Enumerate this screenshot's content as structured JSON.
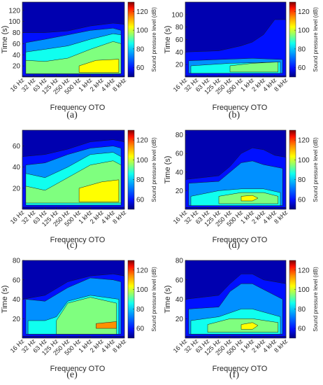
{
  "colors": {
    "background": "#ffffff",
    "axis": "#262626",
    "colormap": [
      "#00007f",
      "#0010ff",
      "#0090ff",
      "#10ffef",
      "#7fff7f",
      "#ffff00",
      "#ff9000",
      "#ff1000",
      "#7f0000"
    ]
  },
  "shared": {
    "xlabel": "Frequency OTO",
    "colorbar_label": "Sound pressure level (dB)",
    "colorbar_ticks": [
      60,
      80,
      100,
      120
    ],
    "colorbar_range": [
      50,
      130
    ],
    "x_tick_labels": [
      "16 Hz",
      "32 Hz",
      "63 Hz",
      "125 Hz",
      "250 Hz",
      "500 Hz",
      "1 kHz",
      "2 kHz",
      "4 kHz",
      "8 kHz"
    ]
  },
  "chart_data": [
    {
      "panel": "(a)",
      "type": "heatmap",
      "ylabel": "Time (s)",
      "xlabel": "Frequency OTO",
      "ylim": [
        0,
        135
      ],
      "y_ticks": [
        20,
        40,
        60,
        80,
        100,
        120
      ],
      "colorbar_ticks": [
        60,
        80,
        100,
        120
      ],
      "regions": [
        {
          "level": 60,
          "outline": [
            [
              0,
              2
            ],
            [
              0,
              80
            ],
            [
              2,
              80
            ],
            [
              4,
              83
            ],
            [
              6,
              92
            ],
            [
              8,
              97
            ],
            [
              9,
              95
            ],
            [
              9,
              2
            ]
          ]
        },
        {
          "level": 75,
          "outline": [
            [
              0.3,
              10
            ],
            [
              0.3,
              62
            ],
            [
              2,
              68
            ],
            [
              4,
              76
            ],
            [
              6,
              84
            ],
            [
              8,
              88
            ],
            [
              8.7,
              84
            ],
            [
              8.7,
              5
            ],
            [
              0.3,
              5
            ]
          ]
        },
        {
          "level": 88,
          "outline": [
            [
              0.3,
              6
            ],
            [
              0.3,
              45
            ],
            [
              2,
              50
            ],
            [
              4,
              56
            ],
            [
              6,
              68
            ],
            [
              8,
              78
            ],
            [
              8.7,
              76
            ],
            [
              8.7,
              6
            ]
          ]
        },
        {
          "level": 98,
          "outline": [
            [
              0.3,
              6
            ],
            [
              0.3,
              30
            ],
            [
              2,
              28
            ],
            [
              4,
              34
            ],
            [
              6,
              50
            ],
            [
              8,
              64
            ],
            [
              8.7,
              60
            ],
            [
              8.7,
              6
            ]
          ]
        },
        {
          "level": 108,
          "outline": [
            [
              5,
              8
            ],
            [
              5,
              20
            ],
            [
              6.5,
              30
            ],
            [
              8.5,
              32
            ],
            [
              8.5,
              8
            ]
          ]
        }
      ]
    },
    {
      "panel": "(b)",
      "type": "heatmap",
      "ylabel": "Time (s)",
      "xlabel": "Frequency OTO",
      "ylim": [
        0,
        120
      ],
      "y_ticks": [
        20,
        40,
        60,
        80,
        100
      ],
      "colorbar_ticks": [
        60,
        80,
        100,
        120
      ],
      "regions": [
        {
          "level": 60,
          "outline": [
            [
              0,
              2
            ],
            [
              0,
              40
            ],
            [
              3,
              42
            ],
            [
              5,
              50
            ],
            [
              6,
              56
            ],
            [
              7,
              68
            ],
            [
              8,
              92
            ],
            [
              9,
              92
            ],
            [
              9,
              2
            ]
          ]
        },
        {
          "level": 75,
          "outline": [
            [
              0.3,
              6
            ],
            [
              0.3,
              26
            ],
            [
              3,
              28
            ],
            [
              6,
              30
            ],
            [
              8.7,
              28
            ],
            [
              8.7,
              6
            ]
          ]
        },
        {
          "level": 88,
          "outline": [
            [
              0.5,
              6
            ],
            [
              0.5,
              18
            ],
            [
              4,
              22
            ],
            [
              8.5,
              24
            ],
            [
              8.5,
              6
            ]
          ]
        },
        {
          "level": 98,
          "outline": [
            [
              4,
              8
            ],
            [
              4,
              18
            ],
            [
              6,
              22
            ],
            [
              8.3,
              24
            ],
            [
              8.3,
              8
            ]
          ]
        }
      ]
    },
    {
      "panel": "(c)",
      "type": "heatmap",
      "ylabel": "",
      "xlabel": "Frequency OTO",
      "ylim": [
        0,
        75
      ],
      "y_ticks": [
        20,
        40,
        60
      ],
      "colorbar_ticks": [
        60,
        80,
        100,
        120
      ],
      "regions": [
        {
          "level": 60,
          "outline": [
            [
              0,
              2
            ],
            [
              0,
              50
            ],
            [
              2,
              52
            ],
            [
              4,
              57
            ],
            [
              6,
              64
            ],
            [
              8,
              66
            ],
            [
              9,
              64
            ],
            [
              9,
              2
            ]
          ]
        },
        {
          "level": 75,
          "outline": [
            [
              0.3,
              4
            ],
            [
              0.3,
              42
            ],
            [
              2,
              44
            ],
            [
              4,
              52
            ],
            [
              6,
              58
            ],
            [
              8,
              60
            ],
            [
              8.7,
              58
            ],
            [
              8.7,
              4
            ]
          ]
        },
        {
          "level": 88,
          "outline": [
            [
              0.3,
              4
            ],
            [
              0.3,
              34
            ],
            [
              2,
              30
            ],
            [
              4,
              40
            ],
            [
              6,
              52
            ],
            [
              8,
              54
            ],
            [
              8.7,
              50
            ],
            [
              8.7,
              4
            ]
          ]
        },
        {
          "level": 98,
          "outline": [
            [
              0.3,
              6
            ],
            [
              0.3,
              22
            ],
            [
              2,
              18
            ],
            [
              4,
              30
            ],
            [
              6,
              42
            ],
            [
              8,
              46
            ],
            [
              8.7,
              42
            ],
            [
              8.7,
              6
            ]
          ]
        },
        {
          "level": 108,
          "outline": [
            [
              5,
              7
            ],
            [
              5,
              20
            ],
            [
              7,
              26
            ],
            [
              8.5,
              28
            ],
            [
              8.5,
              7
            ]
          ]
        }
      ]
    },
    {
      "panel": "(d)",
      "type": "heatmap",
      "ylabel": "Time (s)",
      "xlabel": "Frequency OTO",
      "ylim": [
        0,
        85
      ],
      "y_ticks": [
        20,
        40,
        60,
        80
      ],
      "colorbar_ticks": [
        60,
        80,
        100,
        120
      ],
      "regions": [
        {
          "level": 60,
          "outline": [
            [
              0,
              2
            ],
            [
              0,
              32
            ],
            [
              3,
              36
            ],
            [
              4,
              46
            ],
            [
              5,
              60
            ],
            [
              6,
              66
            ],
            [
              7,
              64
            ],
            [
              8,
              58
            ],
            [
              9,
              56
            ],
            [
              9,
              2
            ]
          ]
        },
        {
          "level": 75,
          "outline": [
            [
              0.3,
              4
            ],
            [
              0.3,
              28
            ],
            [
              3,
              30
            ],
            [
              4,
              40
            ],
            [
              5,
              50
            ],
            [
              6,
              52
            ],
            [
              7,
              48
            ],
            [
              8.7,
              44
            ],
            [
              8.7,
              4
            ]
          ]
        },
        {
          "level": 88,
          "outline": [
            [
              0.5,
              4
            ],
            [
              0.5,
              14
            ],
            [
              3,
              20
            ],
            [
              5,
              22
            ],
            [
              7,
              22
            ],
            [
              8.5,
              18
            ],
            [
              8.5,
              4
            ]
          ]
        },
        {
          "level": 98,
          "outline": [
            [
              3,
              6
            ],
            [
              3,
              14
            ],
            [
              5,
              18
            ],
            [
              7,
              18
            ],
            [
              8.3,
              14
            ],
            [
              8.3,
              6
            ]
          ]
        },
        {
          "level": 108,
          "outline": [
            [
              5,
              9
            ],
            [
              5,
              14
            ],
            [
              6,
              15
            ],
            [
              6.5,
              12
            ],
            [
              6,
              9
            ]
          ]
        }
      ]
    },
    {
      "panel": "(e)",
      "type": "heatmap",
      "ylabel": "Time (s)",
      "xlabel": "Frequency OTO",
      "ylim": [
        0,
        80
      ],
      "y_ticks": [
        20,
        40,
        60,
        80
      ],
      "colorbar_ticks": [
        60,
        80,
        100,
        120
      ],
      "regions": [
        {
          "level": 60,
          "outline": [
            [
              0,
              2
            ],
            [
              0,
              40
            ],
            [
              2,
              44
            ],
            [
              4,
              58
            ],
            [
              6,
              64
            ],
            [
              8,
              66
            ],
            [
              9,
              64
            ],
            [
              9,
              2
            ]
          ]
        },
        {
          "level": 75,
          "outline": [
            [
              0.3,
              4
            ],
            [
              0.3,
              40
            ],
            [
              2,
              38
            ],
            [
              4,
              52
            ],
            [
              6,
              62
            ],
            [
              8,
              60
            ],
            [
              8.7,
              58
            ],
            [
              8.7,
              4
            ]
          ]
        },
        {
          "level": 88,
          "outline": [
            [
              0.5,
              4
            ],
            [
              0.5,
              18
            ],
            [
              2,
              18
            ],
            [
              3,
              22
            ],
            [
              4,
              38
            ],
            [
              6,
              44
            ],
            [
              8.5,
              40
            ],
            [
              8.5,
              4
            ]
          ]
        },
        {
          "level": 98,
          "outline": [
            [
              3,
              4
            ],
            [
              3,
              18
            ],
            [
              4,
              36
            ],
            [
              6,
              42
            ],
            [
              8.3,
              36
            ],
            [
              8.3,
              4
            ]
          ]
        },
        {
          "level": 110,
          "outline": [
            [
              6.5,
              10
            ],
            [
              6.5,
              15
            ],
            [
              8.3,
              17
            ],
            [
              8.3,
              10
            ]
          ]
        }
      ]
    },
    {
      "panel": "(f)",
      "type": "heatmap",
      "ylabel": "Time (s)",
      "xlabel": "Frequency OTO",
      "ylim": [
        0,
        80
      ],
      "y_ticks": [
        20,
        40,
        60,
        80
      ],
      "colorbar_ticks": [
        60,
        80,
        100,
        120
      ],
      "regions": [
        {
          "level": 60,
          "outline": [
            [
              0,
              2
            ],
            [
              0,
              40
            ],
            [
              3,
              44
            ],
            [
              4,
              56
            ],
            [
              5,
              66
            ],
            [
              6,
              66
            ],
            [
              7,
              60
            ],
            [
              8,
              58
            ],
            [
              9,
              56
            ],
            [
              9,
              2
            ]
          ]
        },
        {
          "level": 75,
          "outline": [
            [
              0.3,
              4
            ],
            [
              0.3,
              30
            ],
            [
              3,
              32
            ],
            [
              4,
              48
            ],
            [
              5,
              56
            ],
            [
              6,
              56
            ],
            [
              7,
              50
            ],
            [
              8.7,
              40
            ],
            [
              8.7,
              4
            ]
          ]
        },
        {
          "level": 88,
          "outline": [
            [
              0.5,
              4
            ],
            [
              0.5,
              18
            ],
            [
              3,
              22
            ],
            [
              5,
              30
            ],
            [
              6,
              30
            ],
            [
              8.5,
              22
            ],
            [
              8.5,
              4
            ]
          ]
        },
        {
          "level": 98,
          "outline": [
            [
              2,
              6
            ],
            [
              2,
              14
            ],
            [
              4,
              20
            ],
            [
              6,
              20
            ],
            [
              8.3,
              16
            ],
            [
              8.3,
              6
            ]
          ]
        },
        {
          "level": 108,
          "outline": [
            [
              5,
              9
            ],
            [
              5,
              14
            ],
            [
              6,
              16
            ],
            [
              6.5,
              13
            ],
            [
              6,
              9
            ]
          ]
        }
      ]
    }
  ]
}
